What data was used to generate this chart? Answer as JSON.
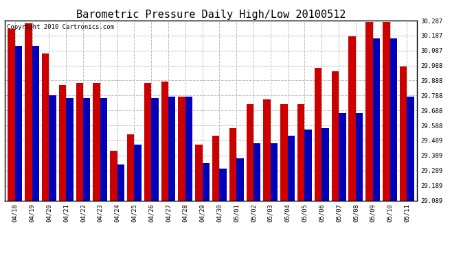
{
  "title": "Barometric Pressure Daily High/Low 20100512",
  "copyright": "Copyright 2010 Cartronics.com",
  "dates": [
    "04/18",
    "04/19",
    "04/20",
    "04/21",
    "04/22",
    "04/23",
    "04/24",
    "04/25",
    "04/26",
    "04/27",
    "04/28",
    "04/29",
    "04/30",
    "05/01",
    "05/02",
    "05/03",
    "05/04",
    "05/05",
    "05/06",
    "05/07",
    "05/08",
    "05/09",
    "05/10",
    "05/11"
  ],
  "highs": [
    30.23,
    30.27,
    30.07,
    29.86,
    29.87,
    29.87,
    29.42,
    29.53,
    29.87,
    29.88,
    29.78,
    29.46,
    29.52,
    29.57,
    29.73,
    29.76,
    29.73,
    29.73,
    29.97,
    29.95,
    30.18,
    30.28,
    30.28,
    29.98
  ],
  "lows": [
    30.12,
    30.12,
    29.79,
    29.77,
    29.77,
    29.77,
    29.33,
    29.46,
    29.77,
    29.78,
    29.78,
    29.34,
    29.3,
    29.37,
    29.47,
    29.47,
    29.52,
    29.56,
    29.57,
    29.67,
    29.67,
    30.17,
    30.17,
    29.78
  ],
  "ymin": 29.089,
  "ymax": 30.287,
  "yticks": [
    29.089,
    29.189,
    29.289,
    29.389,
    29.489,
    29.588,
    29.688,
    29.788,
    29.888,
    29.988,
    30.087,
    30.187,
    30.287
  ],
  "ytick_labels": [
    "29.089",
    "29.189",
    "29.289",
    "29.389",
    "29.489",
    "29.588",
    "29.688",
    "29.788",
    "29.888",
    "29.988",
    "30.087",
    "30.187",
    "30.287"
  ],
  "bar_width": 0.42,
  "high_color": "#cc0000",
  "low_color": "#0000bb",
  "bg_color": "#ffffff",
  "grid_color": "#bbbbbb",
  "title_fontsize": 11,
  "tick_fontsize": 6.5,
  "copyright_fontsize": 6.5
}
